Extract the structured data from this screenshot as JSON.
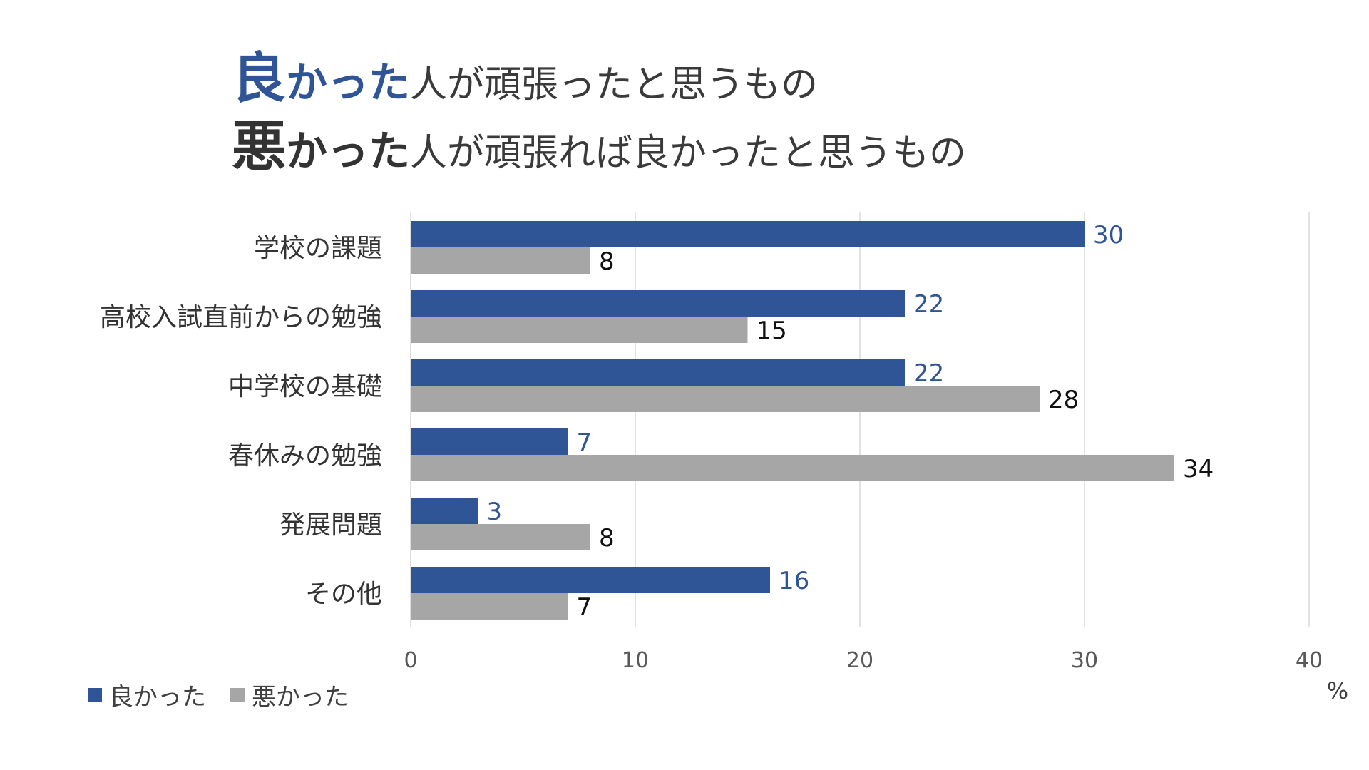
{
  "title": {
    "line1": {
      "emph_kanji": "良",
      "emph_kana": "かった",
      "rest": "人が頑張ったと思うもの"
    },
    "line2": {
      "emph_kanji": "悪",
      "emph_kana": "かった",
      "rest": "人が頑張れば良かったと思うもの"
    }
  },
  "colors": {
    "good": "#2f5597",
    "bad": "#a6a6a6",
    "grid": "#d9d9d9",
    "text": "#404040"
  },
  "chart_data": {
    "type": "bar",
    "orientation": "horizontal",
    "categories": [
      "学校の課題",
      "高校入試直前からの勉強",
      "中学校の基礎",
      "春休みの勉強",
      "発展問題",
      "その他"
    ],
    "series": [
      {
        "name": "良かった",
        "values": [
          30,
          22,
          22,
          7,
          3,
          16
        ]
      },
      {
        "name": "悪かった",
        "values": [
          8,
          15,
          28,
          34,
          8,
          7
        ]
      }
    ],
    "xlim": [
      0,
      40
    ],
    "xticks": [
      "0",
      "10",
      "20",
      "30",
      "40"
    ],
    "xlabel": "%",
    "grid": true,
    "legend_position": "bottom-left"
  }
}
